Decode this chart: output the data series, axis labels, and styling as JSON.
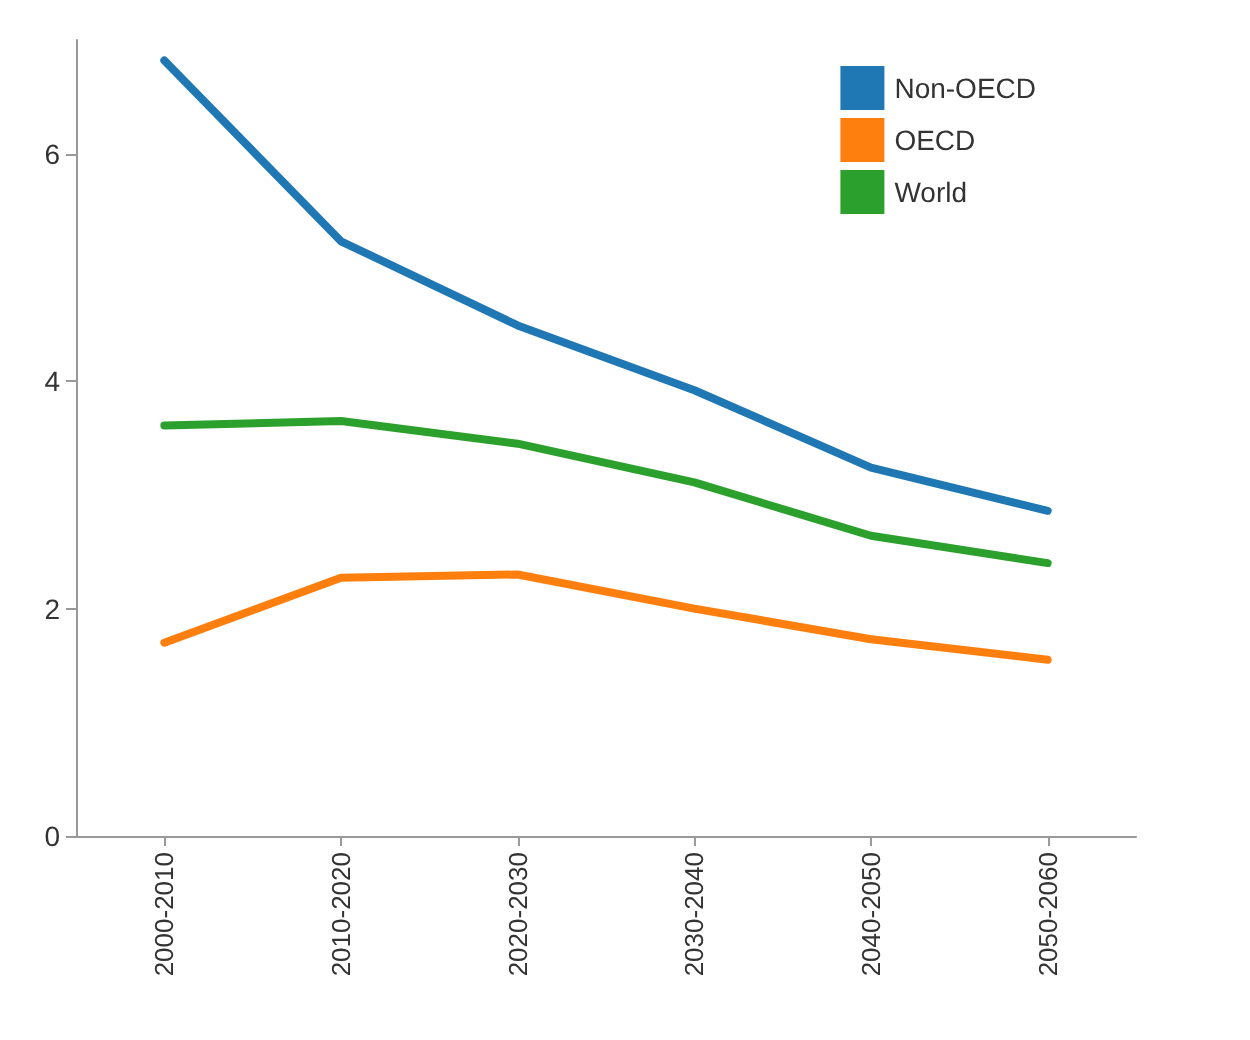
{
  "chart_data": {
    "type": "line",
    "categories": [
      "2000-2010",
      "2010-2020",
      "2020-2030",
      "2030-2040",
      "2040-2050",
      "2050-2060"
    ],
    "series": [
      {
        "name": "Non-OECD",
        "color": "#1f77b4",
        "values": [
          6.82,
          5.23,
          4.49,
          3.92,
          3.24,
          2.86
        ]
      },
      {
        "name": "OECD",
        "color": "#ff7f0e",
        "values": [
          1.7,
          2.27,
          2.3,
          2.0,
          1.73,
          1.55
        ]
      },
      {
        "name": "World",
        "color": "#2ca02c",
        "values": [
          3.61,
          3.65,
          3.45,
          3.11,
          2.64,
          2.4
        ]
      }
    ],
    "ylim": [
      0,
      7
    ],
    "yticks": [
      0,
      2,
      4,
      6
    ],
    "grid": false,
    "legend": "top right",
    "marker": "none",
    "line_style": "solid"
  }
}
